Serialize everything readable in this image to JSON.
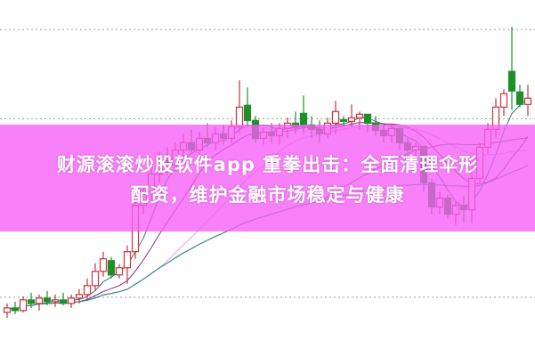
{
  "banner": {
    "line1": "财源滚滚炒股软件app 重拳出击：全面清理伞形",
    "line2": "配资，维护金融市场稳定与健康"
  },
  "chart_data": {
    "type": "candlestick",
    "title": "",
    "xlabel": "",
    "ylabel": "",
    "ylim": [
      0,
      400
    ],
    "grid": "dotted horizontal",
    "gridlines": [
      67,
      267,
      367
    ],
    "colors": {
      "up": "#c8323c",
      "down": "#1f8f2a",
      "grid": "#9a9a9a",
      "banner": "#f65cf6"
    },
    "moving_averages": [
      {
        "period": 5,
        "color": "#3e6f78"
      },
      {
        "period": 10,
        "color": "#7a2f86"
      },
      {
        "period": 20,
        "color": "#eaa2ea"
      },
      {
        "period": 40,
        "color": "#3f7d2e"
      },
      {
        "period": 60,
        "color": "#2b8c8c"
      }
    ],
    "candles_ohlc": [
      [
        50,
        60,
        44,
        55
      ],
      [
        55,
        62,
        48,
        52
      ],
      [
        52,
        68,
        50,
        64
      ],
      [
        64,
        72,
        55,
        60
      ],
      [
        60,
        70,
        52,
        66
      ],
      [
        66,
        74,
        58,
        62
      ],
      [
        62,
        70,
        56,
        64
      ],
      [
        64,
        72,
        58,
        60
      ],
      [
        60,
        70,
        55,
        66
      ],
      [
        66,
        76,
        60,
        70
      ],
      [
        70,
        88,
        64,
        80
      ],
      [
        80,
        105,
        74,
        96
      ],
      [
        96,
        118,
        90,
        110
      ],
      [
        108,
        112,
        88,
        92
      ],
      [
        92,
        104,
        88,
        100
      ],
      [
        100,
        125,
        82,
        118
      ],
      [
        118,
        175,
        110,
        170
      ],
      [
        170,
        190,
        160,
        185
      ],
      [
        185,
        215,
        175,
        205
      ],
      [
        205,
        230,
        195,
        220
      ],
      [
        220,
        235,
        205,
        215
      ],
      [
        215,
        240,
        208,
        232
      ],
      [
        232,
        250,
        222,
        240
      ],
      [
        240,
        255,
        228,
        232
      ],
      [
        232,
        252,
        225,
        245
      ],
      [
        245,
        262,
        235,
        240
      ],
      [
        240,
        258,
        232,
        250
      ],
      [
        250,
        260,
        238,
        245
      ],
      [
        245,
        265,
        240,
        258
      ],
      [
        258,
        310,
        250,
        280
      ],
      [
        282,
        302,
        258,
        265
      ],
      [
        265,
        270,
        240,
        245
      ],
      [
        245,
        258,
        238,
        252
      ],
      [
        252,
        262,
        240,
        248
      ],
      [
        248,
        262,
        238,
        256
      ],
      [
        256,
        268,
        245,
        262
      ],
      [
        262,
        275,
        250,
        258
      ],
      [
        273,
        293,
        250,
        260
      ],
      [
        260,
        270,
        245,
        255
      ],
      [
        255,
        265,
        240,
        250
      ],
      [
        250,
        268,
        245,
        262
      ],
      [
        262,
        287,
        250,
        275
      ],
      [
        266,
        270,
        258,
        264
      ],
      [
        264,
        283,
        258,
        268
      ],
      [
        268,
        275,
        255,
        272
      ],
      [
        272,
        272,
        252,
        262
      ],
      [
        262,
        270,
        248,
        254
      ],
      [
        254,
        262,
        240,
        248
      ],
      [
        248,
        260,
        240,
        256
      ],
      [
        256,
        258,
        232,
        240
      ],
      [
        240,
        246,
        225,
        232
      ],
      [
        232,
        240,
        225,
        236
      ],
      [
        236,
        236,
        185,
        195
      ],
      [
        195,
        200,
        160,
        168
      ],
      [
        168,
        185,
        160,
        178
      ],
      [
        178,
        182,
        155,
        160
      ],
      [
        160,
        175,
        148,
        170
      ],
      [
        170,
        180,
        150,
        165
      ],
      [
        165,
        215,
        150,
        200
      ],
      [
        200,
        240,
        195,
        235
      ],
      [
        235,
        262,
        228,
        255
      ],
      [
        255,
        290,
        245,
        280
      ],
      [
        280,
        300,
        270,
        295
      ],
      [
        320,
        370,
        277,
        298
      ],
      [
        297,
        305,
        280,
        283
      ],
      [
        283,
        305,
        270,
        290
      ]
    ]
  }
}
